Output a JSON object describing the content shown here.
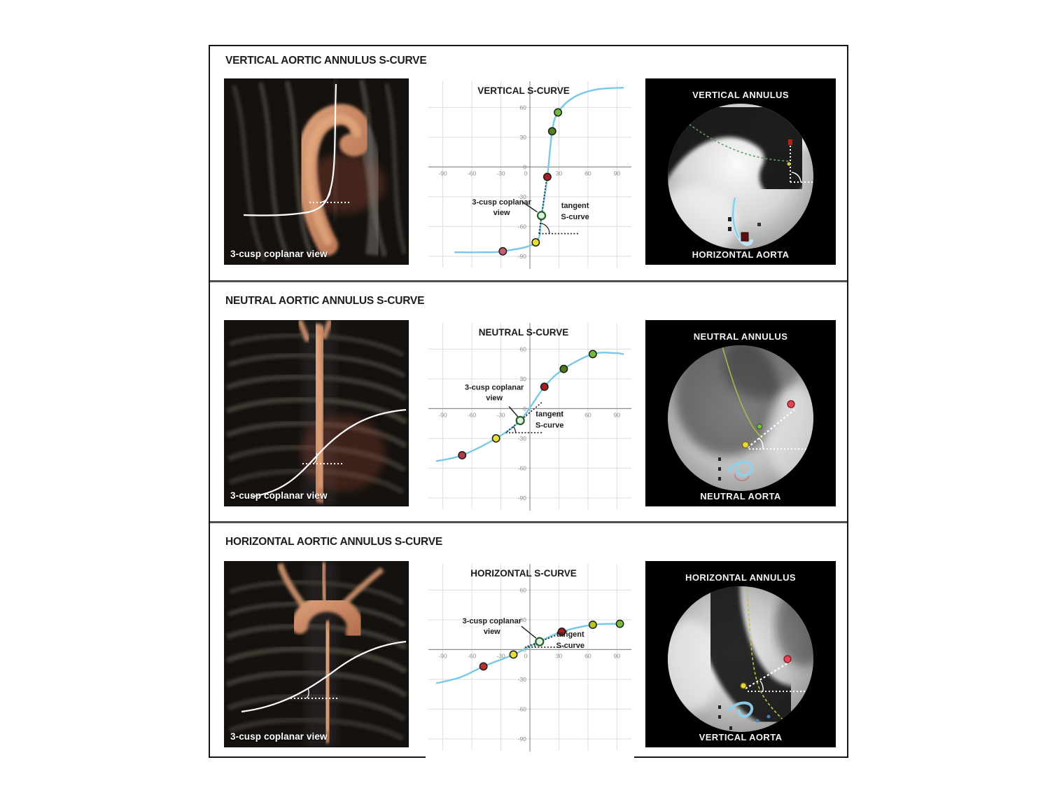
{
  "rows": [
    {
      "title": "VERTICAL AORTIC ANNULUS S-CURVE",
      "ct_label": "3-cusp coplanar view",
      "fluoro_top": "VERTICAL ANNULUS",
      "fluoro_bottom": "HORIZONTAL AORTA"
    },
    {
      "title": "NEUTRAL AORTIC ANNULUS S-CURVE",
      "ct_label": "3-cusp coplanar view",
      "fluoro_top": "NEUTRAL ANNULUS",
      "fluoro_bottom": "NEUTRAL AORTA"
    },
    {
      "title": "HORIZONTAL AORTIC ANNULUS S-CURVE",
      "ct_label": "3-cusp coplanar view",
      "fluoro_top": "HORIZONTAL ANNULUS",
      "fluoro_bottom": "VERTICAL AORTA"
    }
  ],
  "colors": {
    "curve": "#79c9e6",
    "grid": "#dcdcdc",
    "axis": "#8f8f8f",
    "tick": "#8c8c8c",
    "annotation": "#1c1c1c"
  },
  "chart_data": [
    {
      "type": "line",
      "title": "VERTICAL S-CURVE",
      "xlabel": "",
      "ylabel": "",
      "xlim": [
        -102,
        102
      ],
      "ylim": [
        -100,
        85
      ],
      "x_ticks": [
        -90,
        -60,
        -30,
        0,
        30,
        60,
        90
      ],
      "y_ticks": [
        60,
        30,
        0,
        -30,
        -60,
        -90
      ],
      "grid": true,
      "curve": [
        [
          -78,
          -86
        ],
        [
          -50,
          -86
        ],
        [
          -28,
          -85
        ],
        [
          6,
          -76
        ],
        [
          12,
          -49
        ],
        [
          18,
          -10
        ],
        [
          23,
          36
        ],
        [
          29,
          55
        ],
        [
          45,
          70
        ],
        [
          68,
          78
        ],
        [
          97,
          80
        ]
      ],
      "points": [
        {
          "x": -28,
          "y": -85,
          "color": "#c75f6f"
        },
        {
          "x": 6,
          "y": -76,
          "color": "#e6e03a"
        },
        {
          "x": 18,
          "y": -10,
          "color": "#a61f1f"
        },
        {
          "x": 23,
          "y": 36,
          "color": "#55801f"
        },
        {
          "x": 29,
          "y": 55,
          "color": "#74bb3c"
        }
      ],
      "cusp": {
        "x": 12,
        "y": -49
      },
      "labels": {
        "cusp1": "3-cusp coplanar",
        "cusp2": "view",
        "tan1": "tangent",
        "tan2": "S-curve"
      },
      "tangent": {
        "angle_deg": 82,
        "up": 48,
        "dn": 26,
        "h_len": 58,
        "arc_r": 15
      },
      "ann": {
        "cusp_label": [
          -57,
          -16
        ],
        "tangent_label": [
          48,
          -11
        ],
        "leader": [
          [
            -28,
            -20
          ],
          [
            -6,
            -5
          ]
        ]
      }
    },
    {
      "type": "line",
      "title": "NEUTRAL S-CURVE",
      "xlabel": "",
      "ylabel": "",
      "xlim": [
        -102,
        102
      ],
      "ylim": [
        -100,
        85
      ],
      "x_ticks": [
        -90,
        -60,
        -30,
        0,
        30,
        60,
        90
      ],
      "y_ticks": [
        60,
        30,
        0,
        -30,
        -60,
        -90
      ],
      "grid": true,
      "curve": [
        [
          -97,
          -53
        ],
        [
          -70,
          -47
        ],
        [
          -35,
          -30
        ],
        [
          -10,
          -12
        ],
        [
          15,
          22
        ],
        [
          35,
          40
        ],
        [
          65,
          55
        ],
        [
          88,
          56
        ],
        [
          97,
          55
        ]
      ],
      "points": [
        {
          "x": -70,
          "y": -47,
          "color": "#b03a45"
        },
        {
          "x": -35,
          "y": -30,
          "color": "#e6e03a"
        },
        {
          "x": 15,
          "y": 22,
          "color": "#a61f1f"
        },
        {
          "x": 35,
          "y": 40,
          "color": "#4f7a1e"
        },
        {
          "x": 65,
          "y": 55,
          "color": "#74bb3c"
        }
      ],
      "cusp": {
        "x": -10,
        "y": -12
      },
      "labels": {
        "cusp1": "3-cusp coplanar",
        "cusp2": "view",
        "tan1": "tangent",
        "tan2": "S-curve"
      },
      "tangent": {
        "angle_deg": 40,
        "up": 40,
        "dn": 27,
        "h_len": 52,
        "arc_r": 14
      },
      "ann": {
        "cusp_label": [
          -37,
          -44
        ],
        "tangent_label": [
          42,
          -6
        ],
        "leader": [
          [
            -16,
            -20
          ],
          [
            -3,
            -5
          ]
        ]
      }
    },
    {
      "type": "line",
      "title": "HORIZONTAL S-CURVE",
      "xlabel": "",
      "ylabel": "",
      "xlim": [
        -102,
        102
      ],
      "ylim": [
        -100,
        85
      ],
      "x_ticks": [
        -90,
        -60,
        -30,
        0,
        30,
        60,
        90
      ],
      "y_ticks": [
        60,
        30,
        0,
        -30,
        -60,
        -90
      ],
      "grid": true,
      "curve": [
        [
          -97,
          -34
        ],
        [
          -72,
          -28
        ],
        [
          -48,
          -17
        ],
        [
          -17,
          -5
        ],
        [
          10,
          8
        ],
        [
          33,
          18
        ],
        [
          65,
          25
        ],
        [
          93,
          26
        ]
      ],
      "points": [
        {
          "x": -48,
          "y": -17,
          "color": "#b8302e"
        },
        {
          "x": -17,
          "y": -5,
          "color": "#e6e03a"
        },
        {
          "x": 33,
          "y": 18,
          "color": "#a61f1f"
        },
        {
          "x": 65,
          "y": 25,
          "color": "#b9c428"
        },
        {
          "x": 93,
          "y": 26,
          "color": "#74bb3c"
        }
      ],
      "cusp": {
        "x": 10,
        "y": 8
      },
      "labels": {
        "cusp1": "3-cusp coplanar",
        "cusp2": "view",
        "tan1": "tangent",
        "tan2": "S-curve"
      },
      "tangent": {
        "angle_deg": 21,
        "up": 42,
        "dn": 22,
        "h_len": 55,
        "arc_r": 14
      },
      "ann": {
        "cusp_label": [
          -68,
          -26
        ],
        "tangent_label": [
          44,
          -7
        ],
        "leader": [
          [
            -26,
            -22
          ],
          [
            -5,
            -5
          ]
        ]
      }
    }
  ]
}
